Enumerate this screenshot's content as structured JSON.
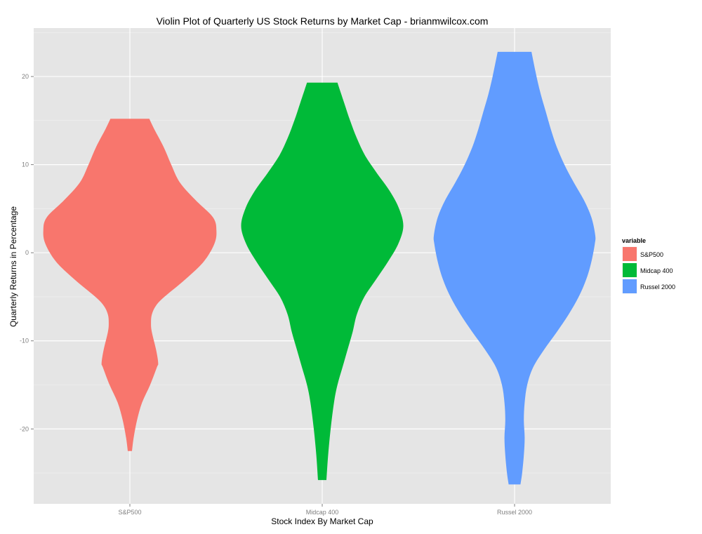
{
  "chart_data": {
    "type": "violin",
    "title": "Violin Plot of Quarterly US Stock Returns by Market Cap - brianmwilcox.com",
    "xlabel": "Stock Index By Market Cap",
    "ylabel": "Quarterly Returns in Percentage",
    "ylim": [
      -28.5,
      25.5
    ],
    "y_ticks": [
      -20,
      -10,
      0,
      10,
      20
    ],
    "grid": true,
    "legend": {
      "title": "variable",
      "position": "right"
    },
    "categories": [
      "S&P500",
      "Midcap 400",
      "Russel 2000"
    ],
    "series": [
      {
        "name": "S&P500",
        "color": "#F8766D",
        "min": -22.5,
        "max": 15.2,
        "density_profile": [
          [
            -22.5,
            0.05
          ],
          [
            -21,
            0.09
          ],
          [
            -19,
            0.17
          ],
          [
            -17,
            0.29
          ],
          [
            -15,
            0.48
          ],
          [
            -13,
            0.64
          ],
          [
            -12.5,
            0.67
          ],
          [
            -11,
            0.62
          ],
          [
            -9,
            0.52
          ],
          [
            -8,
            0.5
          ],
          [
            -7,
            0.52
          ],
          [
            -6,
            0.62
          ],
          [
            -5,
            0.82
          ],
          [
            -3,
            1.32
          ],
          [
            -1,
            1.75
          ],
          [
            1,
            2.0
          ],
          [
            2.5,
            2.05
          ],
          [
            4,
            1.97
          ],
          [
            6,
            1.55
          ],
          [
            8,
            1.18
          ],
          [
            10,
            0.98
          ],
          [
            12,
            0.8
          ],
          [
            14,
            0.58
          ],
          [
            15.2,
            0.46
          ]
        ]
      },
      {
        "name": "Midcap 400",
        "color": "#00BA38",
        "min": -25.8,
        "max": 19.3,
        "density_profile": [
          [
            -25.8,
            0.1
          ],
          [
            -23,
            0.14
          ],
          [
            -20,
            0.2
          ],
          [
            -17,
            0.28
          ],
          [
            -15,
            0.36
          ],
          [
            -13,
            0.48
          ],
          [
            -11,
            0.6
          ],
          [
            -9,
            0.72
          ],
          [
            -7,
            0.82
          ],
          [
            -5,
            1.0
          ],
          [
            -3,
            1.28
          ],
          [
            -1,
            1.56
          ],
          [
            1,
            1.8
          ],
          [
            3,
            1.92
          ],
          [
            5,
            1.82
          ],
          [
            7,
            1.6
          ],
          [
            9,
            1.3
          ],
          [
            11,
            1.02
          ],
          [
            13,
            0.82
          ],
          [
            15,
            0.66
          ],
          [
            17,
            0.52
          ],
          [
            19.3,
            0.36
          ]
        ]
      },
      {
        "name": "Russel 2000",
        "color": "#619CFF",
        "min": -26.3,
        "max": 22.8,
        "density_profile": [
          [
            -26.3,
            0.14
          ],
          [
            -25,
            0.18
          ],
          [
            -23,
            0.22
          ],
          [
            -21,
            0.24
          ],
          [
            -19,
            0.22
          ],
          [
            -17,
            0.24
          ],
          [
            -15,
            0.3
          ],
          [
            -13,
            0.44
          ],
          [
            -11,
            0.7
          ],
          [
            -9,
            1.0
          ],
          [
            -7,
            1.28
          ],
          [
            -5,
            1.52
          ],
          [
            -3,
            1.7
          ],
          [
            -1,
            1.82
          ],
          [
            1,
            1.9
          ],
          [
            2,
            1.91
          ],
          [
            4,
            1.82
          ],
          [
            6,
            1.64
          ],
          [
            8,
            1.4
          ],
          [
            10,
            1.18
          ],
          [
            12,
            1.0
          ],
          [
            14,
            0.86
          ],
          [
            16,
            0.74
          ],
          [
            18,
            0.62
          ],
          [
            20,
            0.52
          ],
          [
            22.8,
            0.4
          ]
        ]
      }
    ]
  }
}
